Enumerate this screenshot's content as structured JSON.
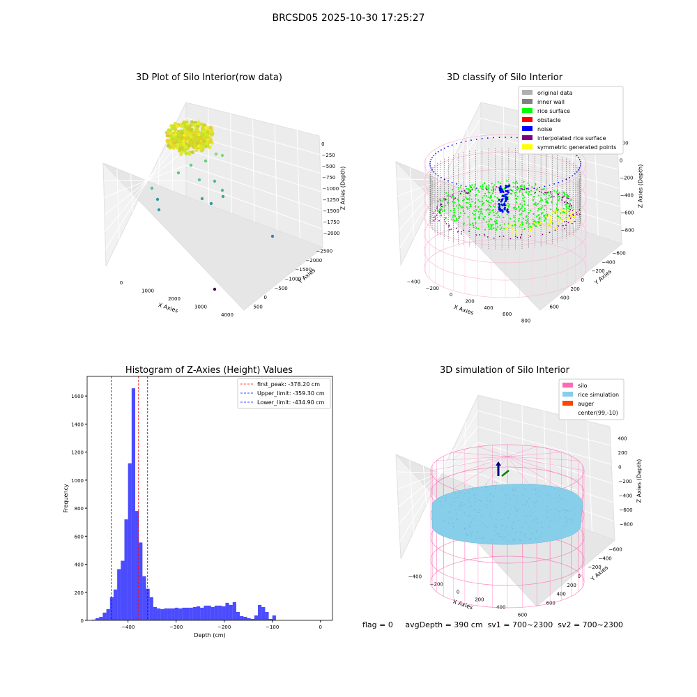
{
  "suptitle": "BRCSD05 2025-10-30 17:25:27",
  "colors": {
    "original": "#b0b0b0",
    "wall": "#808080",
    "rice": "#00ff00",
    "obstacle": "#ff0000",
    "noise": "#0000ff",
    "interp": "#800080",
    "sym": "#ffff00",
    "silo": "#ff69b4",
    "rice_sim": "#87ceeb",
    "auger": "#ff4500",
    "hist": "#0000ff"
  },
  "plots": {
    "p1": {
      "title": "3D Plot of Silo Interior(row data)",
      "xlabel": "X Axies",
      "ylabel": "Y Axies",
      "zlabel": "Z Axies (Depth)",
      "xticks": [
        "0",
        "1000",
        "2000",
        "3000",
        "4000"
      ],
      "yticks": [
        "500",
        "0",
        "−500",
        "−1000",
        "−1500",
        "−2000",
        "−2500"
      ],
      "zticks": [
        "0",
        "−250",
        "−500",
        "−750",
        "−1000",
        "−1250",
        "−1500",
        "−1750",
        "−2000"
      ]
    },
    "p2": {
      "title": "3D classify of Silo Interior",
      "xlabel": "X Axies",
      "ylabel": "Y Axies",
      "zlabel": "Z Axies (Depth)",
      "xticks": [
        "−400",
        "−200",
        "0",
        "200",
        "400",
        "600",
        "800"
      ],
      "yticks": [
        "600",
        "400",
        "200",
        "0",
        "−200",
        "−400",
        "−600"
      ],
      "zticks": [
        "200",
        "0",
        "−200",
        "−400",
        "−600",
        "−800"
      ],
      "legend": [
        {
          "label": "original data",
          "color": "#b0b0b0"
        },
        {
          "label": "inner wall",
          "color": "#808080"
        },
        {
          "label": "rice surface",
          "color": "#00ff00"
        },
        {
          "label": "obstacle",
          "color": "#ff0000"
        },
        {
          "label": "noise",
          "color": "#0000ff"
        },
        {
          "label": "interpolated rice surface",
          "color": "#800080"
        },
        {
          "label": "symmetric generated points",
          "color": "#ffff00"
        }
      ],
      "zclip": "00"
    },
    "p4": {
      "title": "3D simulation of Silo Interior",
      "xlabel": "X Axies",
      "ylabel": "Y Axies",
      "zlabel": "Z Axies (Depth)",
      "xticks": [
        "−400",
        "−200",
        "0",
        "200",
        "400",
        "600"
      ],
      "yticks": [
        "600",
        "400",
        "200",
        "0",
        "−200",
        "−400",
        "−600"
      ],
      "zticks": [
        "400",
        "200",
        "0",
        "−200",
        "−400",
        "−600",
        "−800"
      ],
      "legend": [
        {
          "label": "silo",
          "color": "#ff69b4"
        },
        {
          "label": "rice simulation",
          "color": "#87ceeb"
        },
        {
          "label": "auger",
          "color": "#ff4500"
        },
        {
          "label": "center(99,-10)",
          "color": ""
        }
      ]
    }
  },
  "chart_data": {
    "type": "bar",
    "title": "Histogram of Z-Axies (Height) Values",
    "xlabel": "Depth (cm)",
    "ylabel": "Frequency",
    "xlim": [
      -485,
      25
    ],
    "ylim": [
      0,
      1740
    ],
    "xticks": [
      -400,
      -300,
      -200,
      -100,
      0
    ],
    "xtick_labels": [
      "−400",
      "−300",
      "−200",
      "−100",
      "0"
    ],
    "yticks": [
      0,
      200,
      400,
      600,
      800,
      1000,
      1200,
      1400,
      1600
    ],
    "bin_start": -475,
    "bin_width": 7.5,
    "values": [
      5,
      15,
      25,
      55,
      80,
      165,
      220,
      365,
      425,
      720,
      1120,
      1655,
      780,
      555,
      315,
      225,
      165,
      95,
      85,
      80,
      85,
      85,
      85,
      90,
      85,
      90,
      90,
      90,
      95,
      100,
      90,
      105,
      105,
      95,
      105,
      105,
      100,
      125,
      110,
      130,
      60,
      30,
      25,
      15,
      10,
      35,
      110,
      95,
      60,
      10,
      35
    ],
    "vlines": [
      {
        "label": "first_peak: -378.20 cm",
        "x": -378.2,
        "color": "#ff0000"
      },
      {
        "label": "Upper_limit: -359.30 cm",
        "x": -359.3,
        "color": "#0000ff"
      },
      {
        "label": "Lower_limit: -434.90 cm",
        "x": -434.9,
        "color": "#0000ff"
      }
    ]
  },
  "footer": {
    "flag": "flag = 0",
    "avg": "avgDepth = 390 cm",
    "sv1": "sv1 = 700~2300",
    "sv2": "sv2 = 700~2300"
  }
}
